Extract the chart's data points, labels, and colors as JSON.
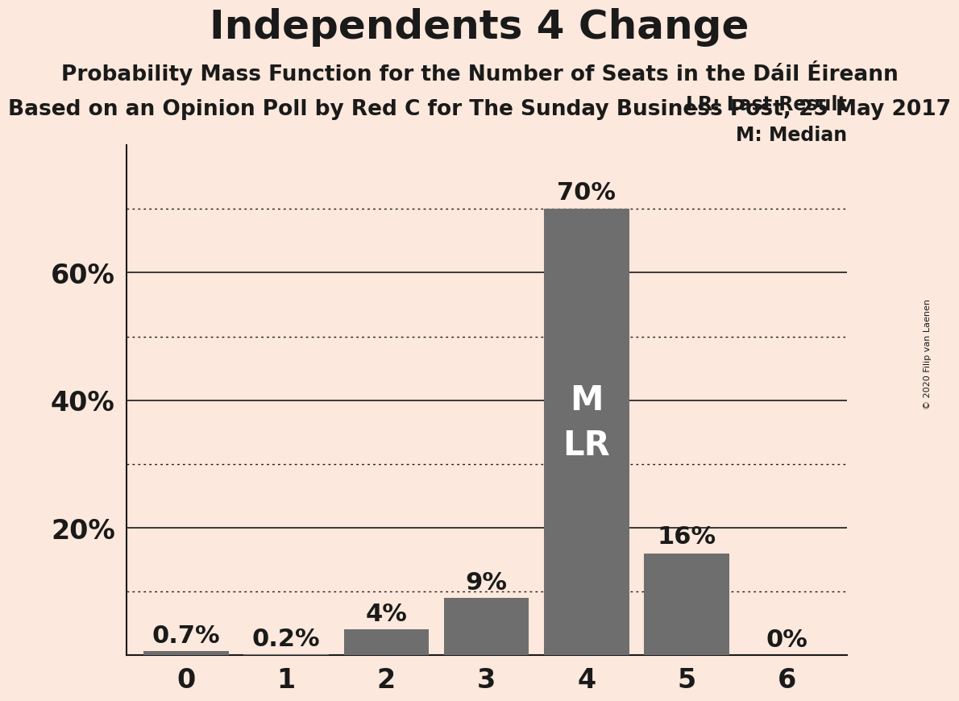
{
  "title": "Independents 4 Change",
  "subtitle1": "Probability Mass Function for the Number of Seats in the Dáil Éireann",
  "subtitle2": "Based on an Opinion Poll by Red C for The Sunday Business Post, 25 May 2017",
  "copyright_text": "© 2020 Filip van Laenen",
  "categories": [
    0,
    1,
    2,
    3,
    4,
    5,
    6
  ],
  "values": [
    0.007,
    0.002,
    0.04,
    0.09,
    0.7,
    0.16,
    0.0
  ],
  "bar_color": "#6e6e6e",
  "background_color": "#fce8dc",
  "label_values": [
    "0.7%",
    "0.2%",
    "4%",
    "9%",
    "70%",
    "16%",
    "0%"
  ],
  "median_seat": 4,
  "last_result_seat": 4,
  "median_label": "M",
  "last_result_label": "LR",
  "legend_lr": "LR: Last Result",
  "legend_m": "M: Median",
  "ylim": [
    0,
    0.8
  ],
  "yticks": [
    0.2,
    0.4,
    0.6
  ],
  "ytick_labels": [
    "20%",
    "40%",
    "60%"
  ],
  "solid_yticks": [
    0.2,
    0.4,
    0.6
  ],
  "dotted_yticks": [
    0.1,
    0.3,
    0.5,
    0.7
  ],
  "title_fontsize": 36,
  "subtitle_fontsize": 19,
  "label_fontsize": 22,
  "axis_fontsize": 24,
  "inside_label_fontsize": 30,
  "bar_label_color_inside": "#ffffff",
  "bar_label_color_outside": "#1a1a1a",
  "text_color": "#1a1a1a"
}
